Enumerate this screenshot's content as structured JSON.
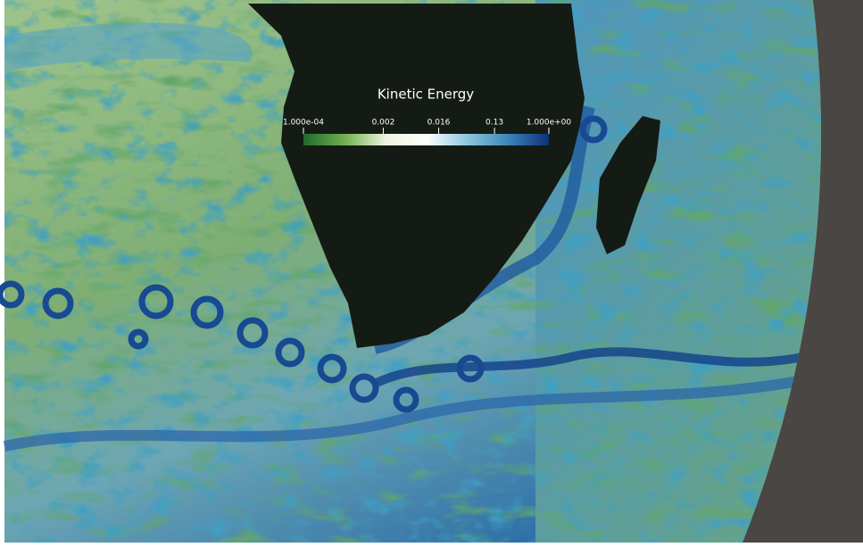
{
  "colorbar": {
    "title": "Kinetic Energy",
    "scale": "log",
    "range": [
      0.0001,
      1
    ],
    "ticks": [
      {
        "value": 0.0001,
        "label": "1.000e-04"
      },
      0.002,
      0.016,
      0.13,
      {
        "value": 1,
        "label": "1.000e+00"
      }
    ],
    "colors": [
      "#1f6b2a",
      "#6fae4f",
      "#eef3dc",
      "#ffffff",
      "#8cc8de",
      "#3b86b8",
      "#0e2f7a"
    ]
  }
}
